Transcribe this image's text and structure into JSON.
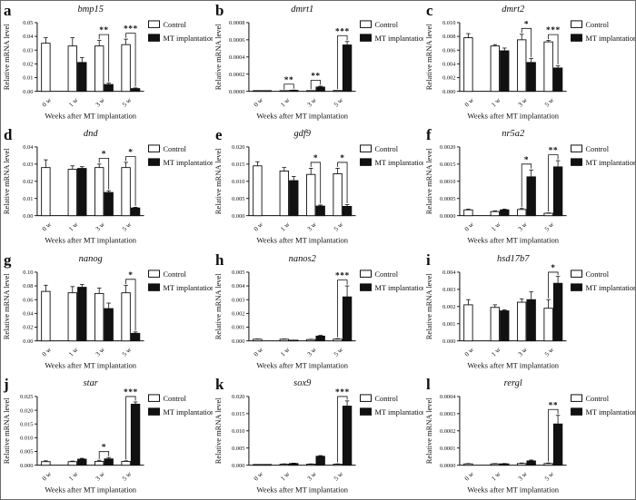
{
  "figure": {
    "ylabel": "Relative mRNA level",
    "xlabel": "Weeks after MT implantation",
    "categories": [
      "0 w",
      "1 w",
      "3 w",
      "5 w"
    ],
    "legend": {
      "control": "Control",
      "treatment": "MT implantation"
    },
    "colors": {
      "control_fill": "#ffffff",
      "treatment_fill": "#111111",
      "axis": "#0f0f0f"
    }
  },
  "chart_data": [
    {
      "panel": "a",
      "type": "bar",
      "title": "bmp15",
      "categories": [
        "0 w",
        "1 w",
        "3 w",
        "5 w"
      ],
      "yticks": [
        "0.00",
        "0.01",
        "0.02",
        "0.03",
        "0.04",
        "0.05"
      ],
      "series": [
        {
          "name": "Control",
          "values": [
            0.035,
            0.033,
            0.033,
            0.034
          ],
          "errors": [
            0.004,
            0.006,
            0.004,
            0.004
          ]
        },
        {
          "name": "MT implantation",
          "values": [
            0,
            0.021,
            0.005,
            0.002
          ],
          "errors": [
            0,
            0.0035,
            0.001,
            0.0005
          ]
        }
      ],
      "significance": [
        {
          "category": "3 w",
          "label": "**"
        },
        {
          "category": "5 w",
          "label": "***"
        }
      ]
    },
    {
      "panel": "b",
      "type": "bar",
      "title": "dmrt1",
      "categories": [
        "0 w",
        "1 w",
        "3 w",
        "5 w"
      ],
      "yticks": [
        "0.0000",
        "0.0002",
        "0.0004",
        "0.0006",
        "0.0008"
      ],
      "series": [
        {
          "name": "Control",
          "values": [
            5e-06,
            5e-06,
            8e-06,
            1e-05
          ],
          "errors": [
            0,
            0,
            0,
            0
          ]
        },
        {
          "name": "MT implantation",
          "values": [
            5e-06,
            1.2e-05,
            5e-05,
            0.00054
          ],
          "errors": [
            0,
            3e-06,
            1e-05,
            4e-05
          ]
        }
      ],
      "significance": [
        {
          "category": "1 w",
          "label": "**"
        },
        {
          "category": "3 w",
          "label": "**"
        },
        {
          "category": "5 w",
          "label": "***"
        }
      ]
    },
    {
      "panel": "c",
      "type": "bar",
      "title": "dmrt2",
      "categories": [
        "0 w",
        "1 w",
        "3 w",
        "5 w"
      ],
      "yticks": [
        "0.000",
        "0.002",
        "0.004",
        "0.006",
        "0.008",
        "0.010"
      ],
      "series": [
        {
          "name": "Control",
          "values": [
            0.0078,
            0.0066,
            0.0075,
            0.0072
          ],
          "errors": [
            0.0006,
            0.0002,
            0.0008,
            0.0002
          ]
        },
        {
          "name": "MT implantation",
          "values": [
            0,
            0.0059,
            0.0042,
            0.0034
          ],
          "errors": [
            0,
            0.0004,
            0.0006,
            0.0003
          ]
        }
      ],
      "significance": [
        {
          "category": "3 w",
          "label": "*"
        },
        {
          "category": "5 w",
          "label": "***"
        }
      ]
    },
    {
      "panel": "d",
      "type": "bar",
      "title": "dnd",
      "categories": [
        "0 w",
        "1 w",
        "3 w",
        "5 w"
      ],
      "yticks": [
        "0.00",
        "0.01",
        "0.02",
        "0.03",
        "0.04"
      ],
      "series": [
        {
          "name": "Control",
          "values": [
            0.028,
            0.027,
            0.028,
            0.028
          ],
          "errors": [
            0.0045,
            0.002,
            0.002,
            0.003
          ]
        },
        {
          "name": "MT implantation",
          "values": [
            0,
            0.0275,
            0.0135,
            0.0045
          ],
          "errors": [
            0,
            0.001,
            0.001,
            0.0004
          ]
        }
      ],
      "significance": [
        {
          "category": "3 w",
          "label": "*"
        },
        {
          "category": "5 w",
          "label": "*"
        }
      ]
    },
    {
      "panel": "e",
      "type": "bar",
      "title": "gdf9",
      "categories": [
        "0 w",
        "1 w",
        "3 w",
        "5 w"
      ],
      "yticks": [
        "0.000",
        "0.005",
        "0.010",
        "0.015",
        "0.020"
      ],
      "series": [
        {
          "name": "Control",
          "values": [
            0.0145,
            0.013,
            0.012,
            0.0122
          ],
          "errors": [
            0.0012,
            0.001,
            0.0018,
            0.0016
          ]
        },
        {
          "name": "MT implantation",
          "values": [
            0,
            0.0102,
            0.0028,
            0.0027
          ],
          "errors": [
            0,
            0.0012,
            0.0003,
            0.0005
          ]
        }
      ],
      "significance": [
        {
          "category": "3 w",
          "label": "*"
        },
        {
          "category": "5 w",
          "label": "*"
        }
      ]
    },
    {
      "panel": "f",
      "type": "bar",
      "title": "nr5a2",
      "categories": [
        "0 w",
        "1 w",
        "3 w",
        "5 w"
      ],
      "yticks": [
        "0.0000",
        "0.0005",
        "0.0010",
        "0.0015",
        "0.0020"
      ],
      "series": [
        {
          "name": "Control",
          "values": [
            0.00017,
            0.00012,
            0.00018,
            7e-05
          ],
          "errors": [
            2e-05,
            2e-05,
            3e-05,
            1e-05
          ]
        },
        {
          "name": "MT implantation",
          "values": [
            0,
            0.00017,
            0.00113,
            0.00142
          ],
          "errors": [
            0,
            2e-05,
            0.0002,
            0.00018
          ]
        }
      ],
      "significance": [
        {
          "category": "3 w",
          "label": "*"
        },
        {
          "category": "5 w",
          "label": "**"
        }
      ]
    },
    {
      "panel": "g",
      "type": "bar",
      "title": "nanog",
      "categories": [
        "0 w",
        "1 w",
        "3 w",
        "5 w"
      ],
      "yticks": [
        "0.00",
        "0.02",
        "0.04",
        "0.06",
        "0.08",
        "0.10"
      ],
      "series": [
        {
          "name": "Control",
          "values": [
            0.072,
            0.07,
            0.069,
            0.07
          ],
          "errors": [
            0.009,
            0.009,
            0.008,
            0.011
          ]
        },
        {
          "name": "MT implantation",
          "values": [
            0,
            0.078,
            0.047,
            0.011
          ],
          "errors": [
            0,
            0.004,
            0.008,
            0.002
          ]
        }
      ],
      "significance": [
        {
          "category": "5 w",
          "label": "*"
        }
      ]
    },
    {
      "panel": "h",
      "type": "bar",
      "title": "nanos2",
      "categories": [
        "0 w",
        "1 w",
        "3 w",
        "5 w"
      ],
      "yticks": [
        "0.000",
        "0.001",
        "0.002",
        "0.003",
        "0.004",
        "0.005"
      ],
      "series": [
        {
          "name": "Control",
          "values": [
            0.00012,
            0.00012,
            0.0001,
            0.00013
          ],
          "errors": [
            2e-05,
            2e-05,
            2e-05,
            3e-05
          ]
        },
        {
          "name": "MT implantation",
          "values": [
            0,
            4e-05,
            0.00035,
            0.0032
          ],
          "errors": [
            0,
            0,
            5e-05,
            0.0008
          ]
        }
      ],
      "significance": [
        {
          "category": "5 w",
          "label": "***"
        }
      ]
    },
    {
      "panel": "i",
      "type": "bar",
      "title": "hsd17b7",
      "categories": [
        "0 w",
        "1 w",
        "3 w",
        "5 w"
      ],
      "yticks": [
        "0.000",
        "0.001",
        "0.002",
        "0.003",
        "0.004"
      ],
      "series": [
        {
          "name": "Control",
          "values": [
            0.0021,
            0.00195,
            0.00225,
            0.0019
          ],
          "errors": [
            0.0003,
            0.00015,
            0.0002,
            0.0005
          ]
        },
        {
          "name": "MT implantation",
          "values": [
            0,
            0.00175,
            0.0024,
            0.00335
          ],
          "errors": [
            0,
            5e-05,
            0.00045,
            0.0004
          ]
        }
      ],
      "significance": [
        {
          "category": "5 w",
          "label": "*"
        }
      ]
    },
    {
      "panel": "j",
      "type": "bar",
      "title": "star",
      "categories": [
        "0 w",
        "1 w",
        "3 w",
        "5 w"
      ],
      "yticks": [
        "0.000",
        "0.005",
        "0.010",
        "0.015",
        "0.020",
        "0.025"
      ],
      "series": [
        {
          "name": "Control",
          "values": [
            0.0013,
            0.0013,
            0.0014,
            0.0014
          ],
          "errors": [
            0.0003,
            0.0002,
            0.0004,
            0.0002
          ]
        },
        {
          "name": "MT implantation",
          "values": [
            0,
            0.0022,
            0.0023,
            0.0222
          ],
          "errors": [
            0,
            0.0003,
            0.0005,
            0.0008
          ]
        }
      ],
      "significance": [
        {
          "category": "3 w",
          "label": "*"
        },
        {
          "category": "5 w",
          "label": "***"
        }
      ]
    },
    {
      "panel": "k",
      "type": "bar",
      "title": "sox9",
      "categories": [
        "0 w",
        "1 w",
        "3 w",
        "5 w"
      ],
      "yticks": [
        "0.000",
        "0.005",
        "0.010",
        "0.015",
        "0.020"
      ],
      "series": [
        {
          "name": "Control",
          "values": [
            0.0002,
            0.0003,
            0.0003,
            0.0003
          ],
          "errors": [
            0,
            0.0001,
            0.0001,
            0.0001
          ]
        },
        {
          "name": "MT implantation",
          "values": [
            0.0001,
            0.0005,
            0.0026,
            0.0172
          ],
          "errors": [
            0,
            0.0001,
            0.0002,
            0.0015
          ]
        }
      ],
      "significance": [
        {
          "category": "5 w",
          "label": "***"
        }
      ]
    },
    {
      "panel": "l",
      "type": "bar",
      "title": "rergl",
      "categories": [
        "0 w",
        "1 w",
        "3 w",
        "5 w"
      ],
      "yticks": [
        "0.0000",
        "0.0001",
        "0.0002",
        "0.0003",
        "0.0004"
      ],
      "series": [
        {
          "name": "Control",
          "values": [
            8e-06,
            8e-06,
            1e-05,
            1e-05
          ],
          "errors": [
            2e-06,
            2e-06,
            3e-06,
            3e-06
          ]
        },
        {
          "name": "MT implantation",
          "values": [
            0,
            8e-06,
            2.5e-05,
            0.00024
          ],
          "errors": [
            0,
            2e-06,
            5e-06,
            5e-05
          ]
        }
      ],
      "significance": [
        {
          "category": "5 w",
          "label": "**"
        }
      ]
    }
  ]
}
